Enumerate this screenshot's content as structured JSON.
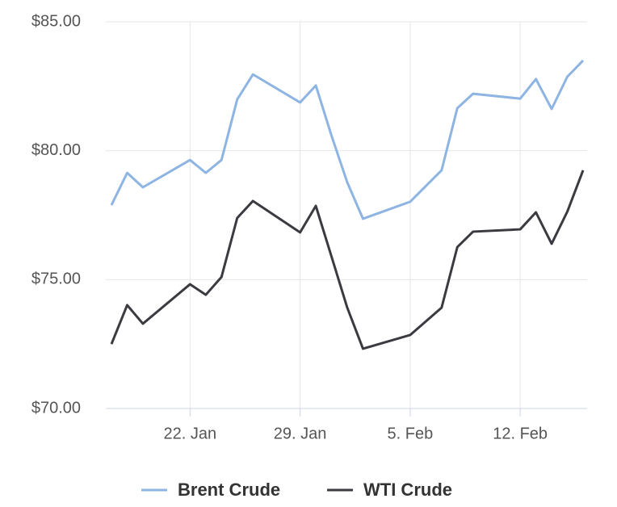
{
  "chart_data": {
    "type": "line",
    "x": [
      "17. Jan",
      "18. Jan",
      "19. Jan",
      "22. Jan",
      "23. Jan",
      "24. Jan",
      "25. Jan",
      "26. Jan",
      "29. Jan",
      "30. Jan",
      "31. Jan",
      "1. Feb",
      "2. Feb",
      "5. Feb",
      "7. Feb",
      "8. Feb",
      "9. Feb",
      "12. Feb",
      "13. Feb",
      "14. Feb",
      "15. Feb",
      "16. Feb"
    ],
    "series": [
      {
        "name": "Brent Crude",
        "color": "#8db4e2",
        "values": [
          77.89,
          79.14,
          78.58,
          79.64,
          79.14,
          79.64,
          81.99,
          82.96,
          81.87,
          82.53,
          80.58,
          78.77,
          77.36,
          78.02,
          79.24,
          81.65,
          82.21,
          82.02,
          82.78,
          81.62,
          82.87,
          83.5
        ]
      },
      {
        "name": "WTI Crude",
        "color": "#3a3a40",
        "values": [
          72.5,
          74.01,
          73.29,
          74.82,
          74.41,
          75.1,
          77.39,
          78.05,
          76.83,
          77.86,
          75.89,
          73.91,
          72.32,
          72.85,
          73.91,
          76.26,
          76.86,
          76.95,
          77.61,
          76.39,
          77.64,
          79.24
        ]
      }
    ],
    "xlim": [
      "17. Jan",
      "16. Feb"
    ],
    "xticks": [
      "22. Jan",
      "29. Jan",
      "5. Feb",
      "12. Feb"
    ],
    "ylim": [
      70,
      85
    ],
    "yticks": [
      {
        "value": 70,
        "label": "$70.00"
      },
      {
        "value": 75,
        "label": "$75.00"
      },
      {
        "value": 80,
        "label": "$80.00"
      },
      {
        "value": 85,
        "label": "$85.00"
      }
    ],
    "grid": true,
    "legend": "bottom"
  }
}
